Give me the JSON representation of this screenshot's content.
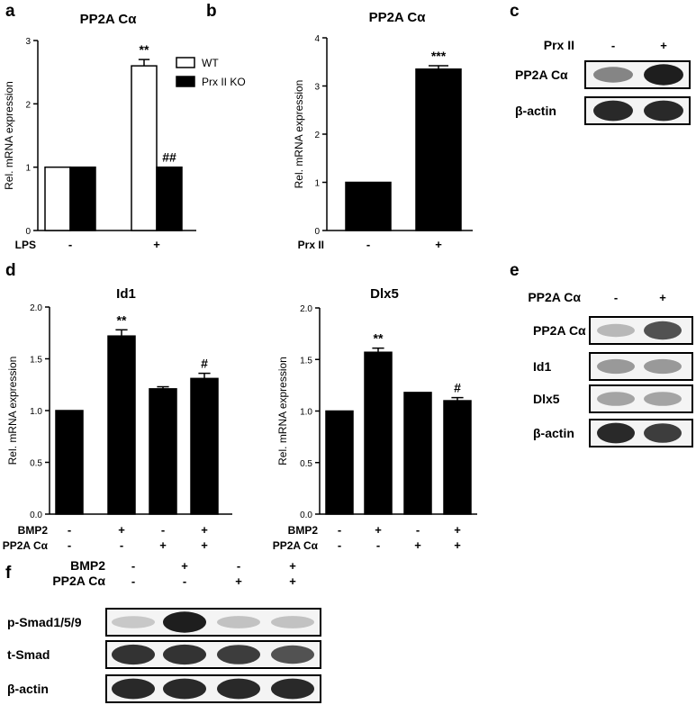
{
  "panel_labels": [
    "a",
    "b",
    "c",
    "d",
    "e",
    "f"
  ],
  "chart_data": [
    {
      "type": "bar",
      "panel": "a",
      "title": "PP2A Cα",
      "ylabel": "Rel. mRNA expression",
      "xlabel": "",
      "ylim": [
        0,
        3
      ],
      "yticks": [
        "0",
        "1",
        "2",
        "3"
      ],
      "conditions": [
        {
          "label": "LPS",
          "values": [
            "-",
            "+"
          ]
        }
      ],
      "series": [
        {
          "name": "WT",
          "fill": "#ffffff",
          "values": [
            1.0,
            2.6
          ],
          "errors": [
            0,
            0.1
          ]
        },
        {
          "name": "Prx II KO",
          "fill": "#000000",
          "values": [
            1.0,
            1.0
          ],
          "errors": [
            0,
            0
          ]
        }
      ],
      "annotations": [
        {
          "text": "**",
          "group": 1,
          "series": 0
        },
        {
          "text": "##",
          "group": 1,
          "series": 1
        }
      ],
      "legend": "top-right"
    },
    {
      "type": "bar",
      "panel": "b",
      "title": "PP2A Cα",
      "ylabel": "Rel. mRNA expression",
      "xlabel": "",
      "ylim": [
        0,
        4
      ],
      "yticks": [
        "0",
        "1",
        "2",
        "3",
        "4"
      ],
      "conditions": [
        {
          "label": "Prx II",
          "values": [
            "-",
            "+"
          ]
        }
      ],
      "values": [
        1.0,
        3.35
      ],
      "errors": [
        0,
        0.07
      ],
      "annotations": [
        {
          "text": "***",
          "index": 1
        }
      ]
    },
    {
      "type": "bar",
      "panel": "d",
      "title": "Id1",
      "ylabel": "Rel. mRNA expression",
      "xlabel": "",
      "ylim": [
        0,
        2.0
      ],
      "yticks": [
        "0.0",
        "0.5",
        "1.0",
        "1.5",
        "2.0"
      ],
      "conditions": [
        {
          "label": "BMP2",
          "values": [
            "-",
            "+",
            "-",
            "+"
          ]
        },
        {
          "label": "PP2A Cα",
          "values": [
            "-",
            "-",
            "+",
            "+"
          ]
        }
      ],
      "values": [
        1.0,
        1.72,
        1.21,
        1.31
      ],
      "errors": [
        0,
        0.06,
        0.02,
        0.05
      ],
      "annotations": [
        {
          "text": "**",
          "index": 1
        },
        {
          "text": "#",
          "index": 3
        }
      ]
    },
    {
      "type": "bar",
      "panel": "d",
      "title": "Dlx5",
      "ylabel": "Rel. mRNA expression",
      "xlabel": "",
      "ylim": [
        0,
        2.0
      ],
      "yticks": [
        "0.0",
        "0.5",
        "1.0",
        "1.5",
        "2.0"
      ],
      "conditions": [
        {
          "label": "BMP2",
          "values": [
            "-",
            "+",
            "-",
            "+"
          ]
        },
        {
          "label": "PP2A Cα",
          "values": [
            "-",
            "-",
            "+",
            "+"
          ]
        }
      ],
      "values": [
        1.0,
        1.57,
        1.18,
        1.1
      ],
      "errors": [
        0,
        0.04,
        0,
        0.03
      ],
      "annotations": [
        {
          "text": "**",
          "index": 1
        },
        {
          "text": "#",
          "index": 3
        }
      ]
    }
  ],
  "blots": {
    "c": {
      "conditions": [
        {
          "label": "Prx II",
          "values": [
            "-",
            "+"
          ]
        }
      ],
      "rows": [
        {
          "label": "PP2A Cα",
          "intensities": [
            0.45,
            0.95
          ]
        },
        {
          "label": "β-actin",
          "intensities": [
            0.9,
            0.9
          ]
        }
      ]
    },
    "e": {
      "conditions": [
        {
          "label": "PP2A Cα",
          "values": [
            "-",
            "+"
          ]
        }
      ],
      "rows": [
        {
          "label": "PP2A Cα",
          "intensities": [
            0.2,
            0.7
          ]
        },
        {
          "label": "Id1",
          "intensities": [
            0.35,
            0.35
          ]
        },
        {
          "label": "Dlx5",
          "intensities": [
            0.3,
            0.3
          ]
        },
        {
          "label": "β-actin",
          "intensities": [
            0.9,
            0.8
          ]
        }
      ]
    },
    "f": {
      "conditions": [
        {
          "label": "BMP2",
          "values": [
            "-",
            "+",
            "-",
            "+"
          ]
        },
        {
          "label": "PP2A Cα",
          "values": [
            "-",
            "-",
            "+",
            "+"
          ]
        }
      ],
      "rows": [
        {
          "label": "p-Smad1/5/9",
          "intensities": [
            0.12,
            0.95,
            0.15,
            0.15
          ]
        },
        {
          "label": "t-Smad",
          "intensities": [
            0.85,
            0.85,
            0.8,
            0.7
          ]
        },
        {
          "label": "β-actin",
          "intensities": [
            0.9,
            0.9,
            0.9,
            0.9
          ]
        }
      ]
    }
  }
}
